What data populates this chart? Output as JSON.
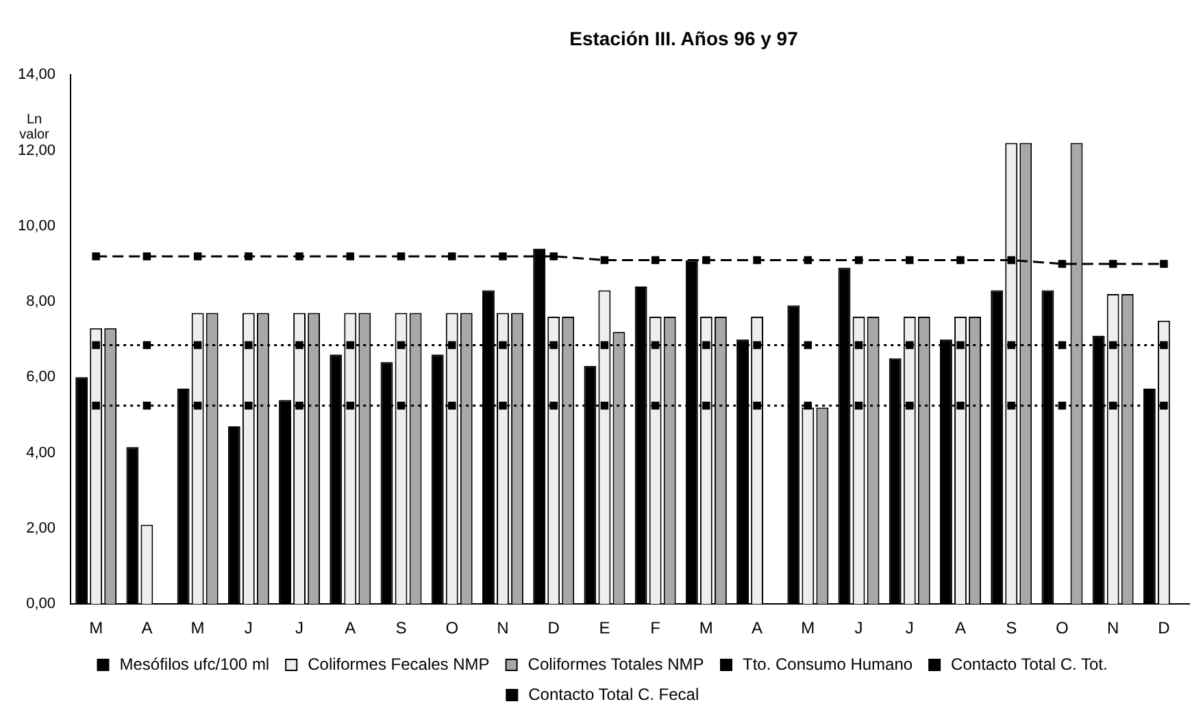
{
  "chart_data": {
    "type": "bar",
    "title": "Estación III. Años 96 y 97",
    "ylabel": "Ln valor",
    "categories": [
      "M",
      "A",
      "M",
      "J",
      "J",
      "A",
      "S",
      "O",
      "N",
      "D",
      "E",
      "F",
      "M",
      "A",
      "M",
      "J",
      "J",
      "A",
      "S",
      "O",
      "N",
      "D"
    ],
    "series": [
      {
        "name": "Mesófilos ufc/100 ml",
        "color": "#000000",
        "values": [
          6.0,
          4.15,
          5.7,
          4.7,
          5.4,
          6.6,
          6.4,
          6.6,
          8.3,
          9.4,
          6.3,
          8.4,
          9.1,
          7.0,
          7.9,
          8.9,
          6.5,
          7.0,
          8.3,
          8.3,
          7.1,
          5.7
        ]
      },
      {
        "name": "Coliformes Fecales NMP",
        "color": "#eeeeee",
        "values": [
          7.3,
          2.1,
          7.7,
          7.7,
          7.7,
          7.7,
          7.7,
          7.7,
          7.7,
          7.6,
          8.3,
          7.6,
          7.6,
          7.6,
          5.2,
          7.6,
          7.6,
          7.6,
          12.2,
          null,
          8.2,
          7.5
        ]
      },
      {
        "name": "Coliformes Totales NMP",
        "color": "#a8a8a8",
        "values": [
          7.3,
          null,
          7.7,
          7.7,
          7.7,
          7.7,
          7.7,
          7.7,
          7.7,
          7.6,
          7.2,
          7.6,
          7.6,
          null,
          5.2,
          7.6,
          7.6,
          7.6,
          12.2,
          12.2,
          8.2,
          null
        ]
      },
      {
        "name": "Tto. Consumo Humano",
        "type": "line",
        "color": "#000000",
        "line_style": "dashed",
        "marker": "square",
        "values": [
          9.2,
          9.2,
          9.2,
          9.2,
          9.2,
          9.2,
          9.2,
          9.2,
          9.2,
          9.2,
          9.1,
          9.1,
          9.1,
          9.1,
          9.1,
          9.1,
          9.1,
          9.1,
          9.1,
          9.0,
          9.0,
          9.0
        ]
      },
      {
        "name": "Contacto Total C. Tot.",
        "type": "line",
        "color": "#000000",
        "line_style": "dotted",
        "marker": "square",
        "values": [
          6.85,
          6.85,
          6.85,
          6.85,
          6.85,
          6.85,
          6.85,
          6.85,
          6.85,
          6.85,
          6.85,
          6.85,
          6.85,
          6.85,
          6.85,
          6.85,
          6.85,
          6.85,
          6.85,
          6.85,
          6.85,
          6.85
        ]
      },
      {
        "name": "Contacto Total C. Fecal",
        "type": "line",
        "color": "#000000",
        "line_style": "dotted",
        "marker": "square",
        "values": [
          5.25,
          5.25,
          5.25,
          5.25,
          5.25,
          5.25,
          5.25,
          5.25,
          5.25,
          5.25,
          5.25,
          5.25,
          5.25,
          5.25,
          5.25,
          5.25,
          5.25,
          5.25,
          5.25,
          5.25,
          5.25,
          5.25
        ]
      }
    ],
    "ylim": [
      0,
      14
    ],
    "yticks": [
      {
        "value": 0,
        "label": "0,00"
      },
      {
        "value": 2,
        "label": "2,00"
      },
      {
        "value": 4,
        "label": "4,00"
      },
      {
        "value": 6,
        "label": "6,00"
      },
      {
        "value": 8,
        "label": "8,00"
      },
      {
        "value": 10,
        "label": "10,00"
      },
      {
        "value": 12,
        "label": "12,00"
      },
      {
        "value": 14,
        "label": "14,00"
      }
    ],
    "grid": false,
    "legend": "bottom"
  }
}
